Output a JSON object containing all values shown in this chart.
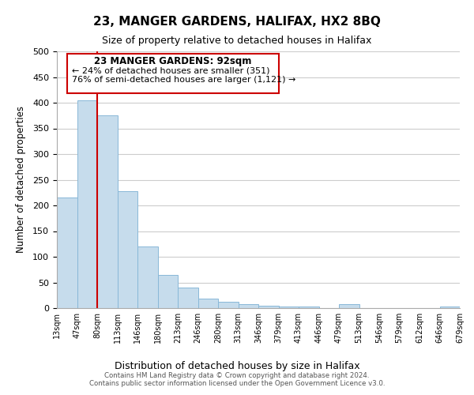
{
  "title": "23, MANGER GARDENS, HALIFAX, HX2 8BQ",
  "subtitle": "Size of property relative to detached houses in Halifax",
  "xlabel": "Distribution of detached houses by size in Halifax",
  "ylabel": "Number of detached properties",
  "bar_color": "#c6dcec",
  "bar_edge_color": "#89b8d8",
  "bin_labels": [
    "13sqm",
    "47sqm",
    "80sqm",
    "113sqm",
    "146sqm",
    "180sqm",
    "213sqm",
    "246sqm",
    "280sqm",
    "313sqm",
    "346sqm",
    "379sqm",
    "413sqm",
    "446sqm",
    "479sqm",
    "513sqm",
    "546sqm",
    "579sqm",
    "612sqm",
    "646sqm",
    "679sqm"
  ],
  "bar_heights": [
    215,
    405,
    375,
    228,
    120,
    65,
    40,
    18,
    12,
    8,
    5,
    3,
    3,
    0,
    8,
    0,
    0,
    0,
    0,
    3
  ],
  "ylim": [
    0,
    500
  ],
  "yticks": [
    0,
    50,
    100,
    150,
    200,
    250,
    300,
    350,
    400,
    450,
    500
  ],
  "vline_x_label": "80sqm",
  "annotation_title": "23 MANGER GARDENS: 92sqm",
  "annotation_line1": "← 24% of detached houses are smaller (351)",
  "annotation_line2": "76% of semi-detached houses are larger (1,121) →",
  "vline_color": "#cc0000",
  "footer_line1": "Contains HM Land Registry data © Crown copyright and database right 2024.",
  "footer_line2": "Contains public sector information licensed under the Open Government Licence v3.0.",
  "background_color": "#ffffff",
  "grid_color": "#cccccc"
}
